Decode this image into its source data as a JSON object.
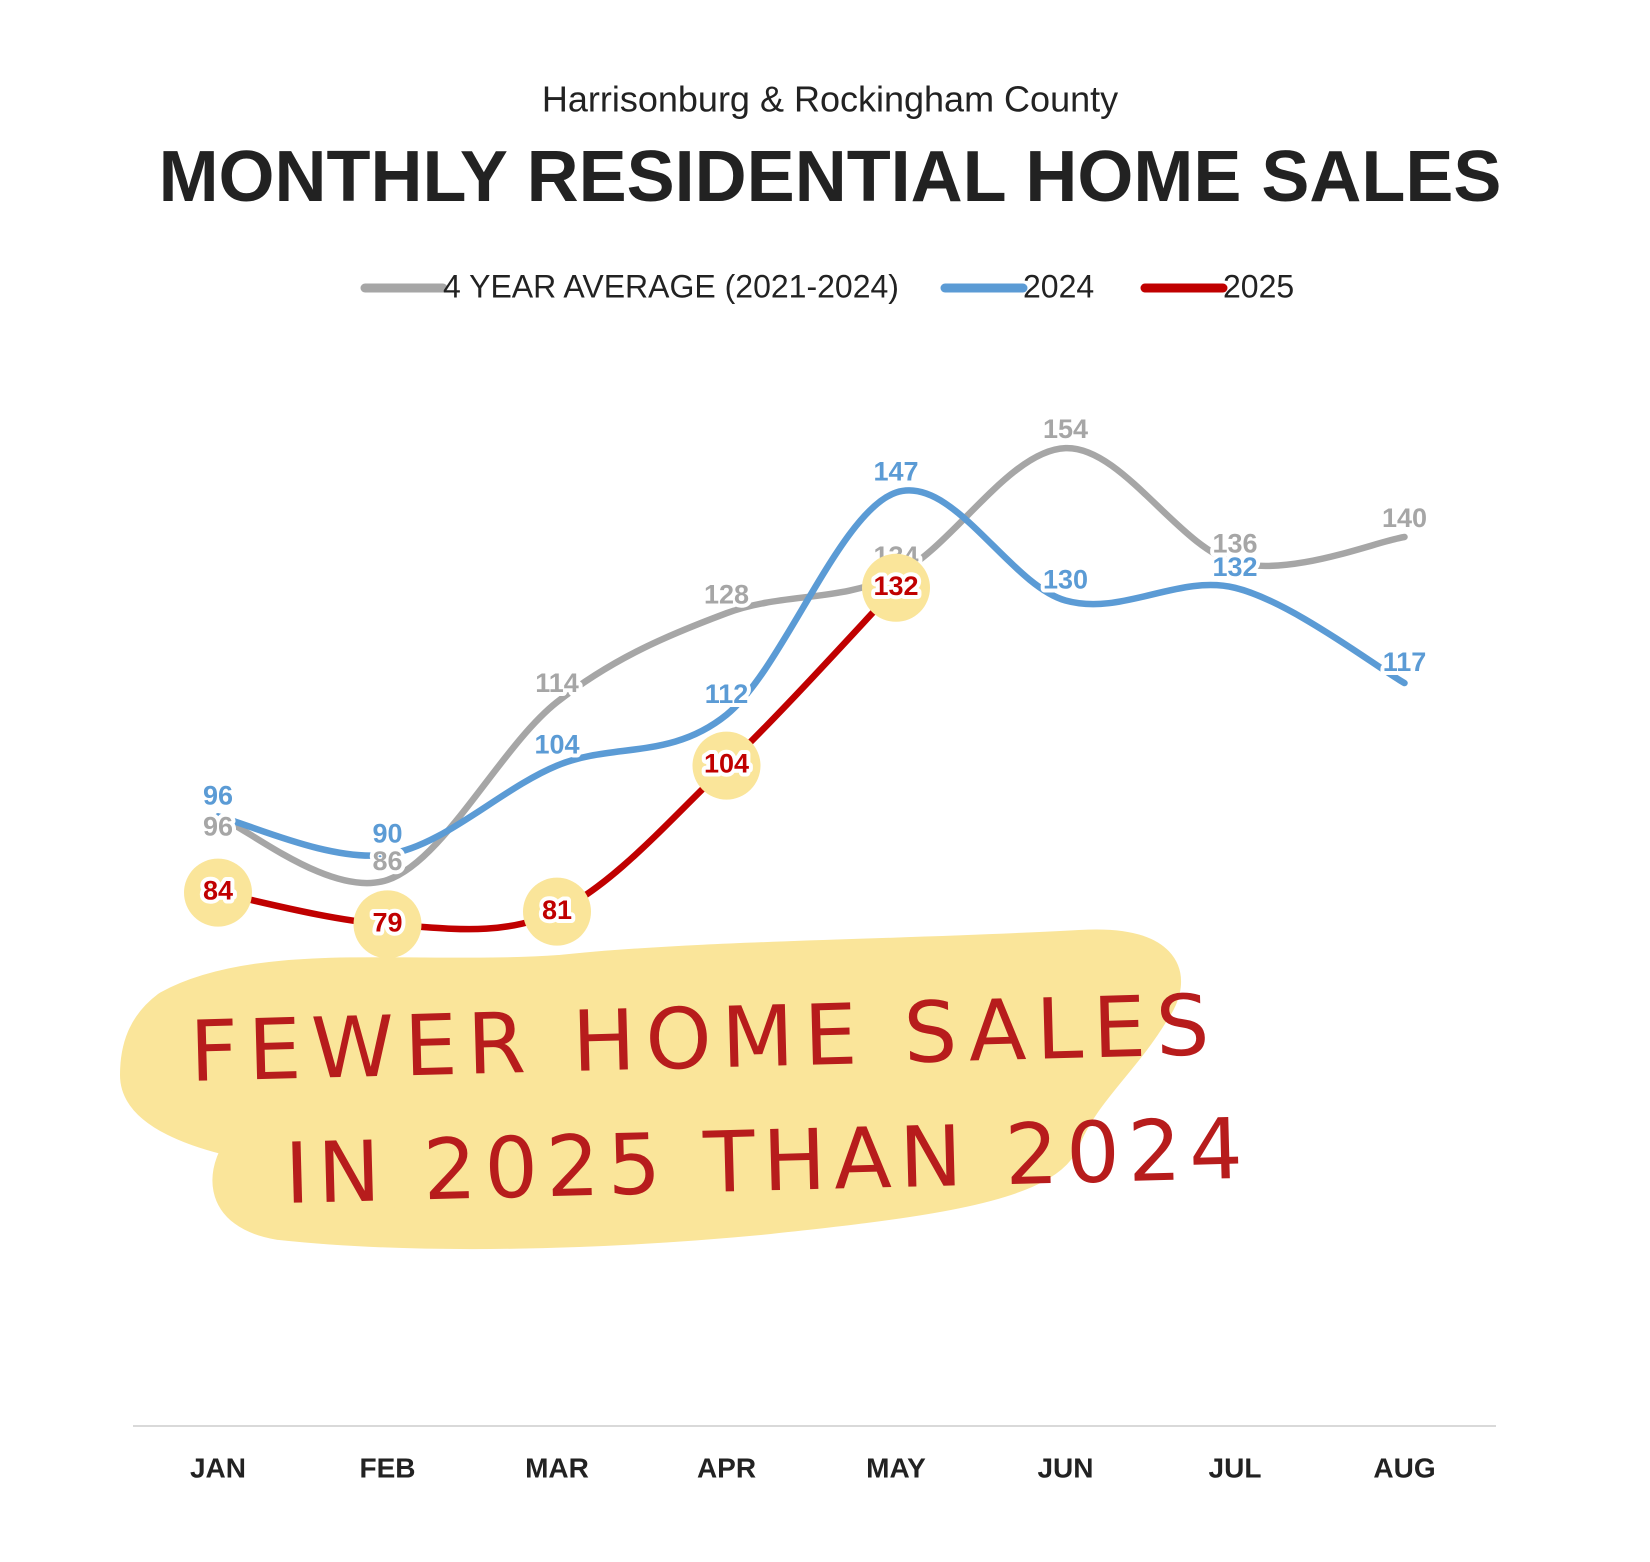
{
  "chart_data": {
    "type": "line",
    "subtitle": "Harrisonburg & Rockingham County",
    "title": "MONTHLY RESIDENTIAL HOME SALES",
    "categories": [
      "JAN",
      "FEB",
      "MAR",
      "APR",
      "MAY",
      "JUN",
      "JUL",
      "AUG"
    ],
    "series": [
      {
        "name": "4 YEAR AVERAGE (2021-2024)",
        "color": "#a6a6a6",
        "values": [
          96,
          86,
          114,
          128,
          134,
          154,
          136,
          140
        ]
      },
      {
        "name": "2024",
        "color": "#5b9bd5",
        "values": [
          96,
          90,
          104,
          112,
          147,
          130,
          132,
          117
        ]
      },
      {
        "name": "2025",
        "color": "#c00000",
        "values": [
          84,
          79,
          81,
          104,
          132,
          null,
          null,
          null
        ]
      }
    ],
    "annotations": [
      "FEWER HOME SALES",
      "IN 2025 THAN 2024"
    ],
    "legend": "top"
  }
}
